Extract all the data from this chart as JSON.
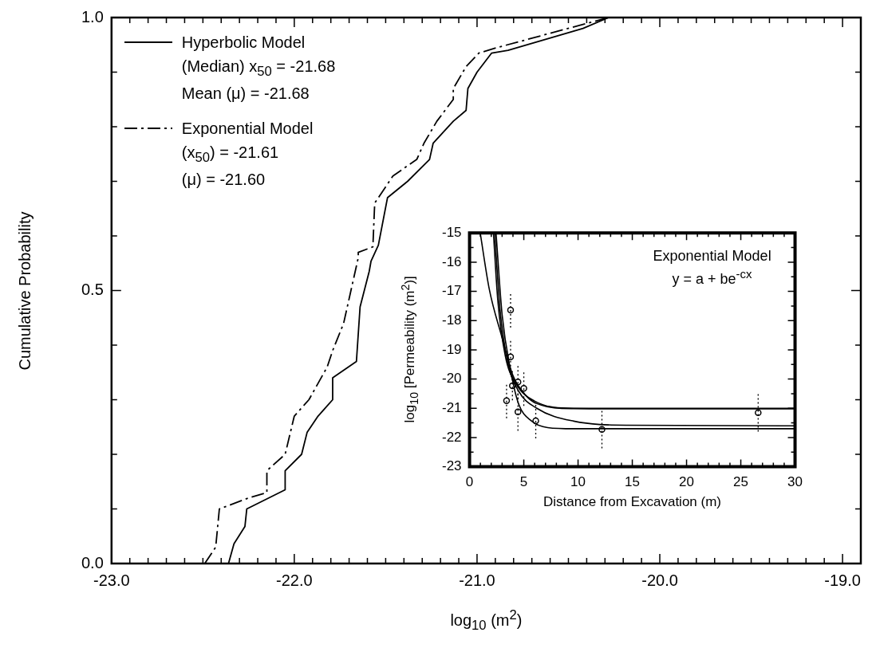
{
  "chart_data": [
    {
      "type": "line",
      "xlabel": "log$_{10}$ (m$^{2}$)",
      "ylabel": "Cumulative Probability",
      "legend": "top left",
      "annotations": [
        "(Median) x$_{50}$ = -21.68",
        "Mean (μ) = -21.68",
        "(x$_{50}$) = -21.61",
        "(μ) = -21.60"
      ],
      "xlim": [
        -23,
        -18.9
      ],
      "ylim": [
        0,
        1
      ],
      "xticks": [
        {
          "value": -23,
          "label": "-23.0"
        },
        {
          "value": -22.9,
          "label": null
        },
        {
          "value": -22.8,
          "label": null
        },
        {
          "value": -22.7,
          "label": null
        },
        {
          "value": -22.6,
          "label": null
        },
        {
          "value": -22.5,
          "label": null
        },
        {
          "value": -22.4,
          "label": null
        },
        {
          "value": -22.3,
          "label": null
        },
        {
          "value": -22.2,
          "label": null
        },
        {
          "value": -22.1,
          "label": null
        },
        {
          "value": -22,
          "label": "-22.0"
        },
        {
          "value": -21.9,
          "label": null
        },
        {
          "value": -21.8,
          "label": null
        },
        {
          "value": -21.7,
          "label": null
        },
        {
          "value": -21.6,
          "label": null
        },
        {
          "value": -21.5,
          "label": null
        },
        {
          "value": -21.4,
          "label": null
        },
        {
          "value": -21.3,
          "label": null
        },
        {
          "value": -21.2,
          "label": null
        },
        {
          "value": -21.1,
          "label": null
        },
        {
          "value": -21,
          "label": "-21.0"
        },
        {
          "value": -20.9,
          "label": null
        },
        {
          "value": -20.8,
          "label": null
        },
        {
          "value": -20.7,
          "label": null
        },
        {
          "value": -20.6,
          "label": null
        },
        {
          "value": -20.5,
          "label": null
        },
        {
          "value": -20.4,
          "label": null
        },
        {
          "value": -20.3,
          "label": null
        },
        {
          "value": -20.2,
          "label": null
        },
        {
          "value": -20.1,
          "label": null
        },
        {
          "value": -20,
          "label": "-20.0"
        },
        {
          "value": -19.9,
          "label": null
        },
        {
          "value": -19.8,
          "label": null
        },
        {
          "value": -19.7,
          "label": null
        },
        {
          "value": -19.6,
          "label": null
        },
        {
          "value": -19.5,
          "label": null
        },
        {
          "value": -19.4,
          "label": null
        },
        {
          "value": -19.3,
          "label": null
        },
        {
          "value": -19.2,
          "label": null
        },
        {
          "value": -19.1,
          "label": null
        },
        {
          "value": -19,
          "label": "-19.0"
        }
      ],
      "yticks": [
        {
          "value": 0,
          "label": "0.0"
        },
        {
          "value": 0.1,
          "label": null
        },
        {
          "value": 0.2,
          "label": null
        },
        {
          "value": 0.3,
          "label": null
        },
        {
          "value": 0.4,
          "label": null
        },
        {
          "value": 0.5,
          "label": "0.5"
        },
        {
          "value": 0.6,
          "label": null
        },
        {
          "value": 0.7,
          "label": null
        },
        {
          "value": 0.8,
          "label": null
        },
        {
          "value": 0.9,
          "label": null
        },
        {
          "value": 1,
          "label": "1.0"
        }
      ],
      "series": [
        {
          "name": "Hyperbolic Model",
          "color": "#000000",
          "line_style": "solid",
          "x": [
            -22.36,
            -22.33,
            -22.27,
            -22.26,
            -22.05,
            -22.05,
            -21.96,
            -21.93,
            -21.87,
            -21.79,
            -21.79,
            -21.66,
            -21.64,
            -21.59,
            -21.58,
            -21.54,
            -21.49,
            -21.38,
            -21.26,
            -21.24,
            -21.13,
            -21.06,
            -21.05,
            -21.0,
            -20.92,
            -20.83,
            -20.42,
            -20.28
          ],
          "values": [
            0,
            0.036,
            0.068,
            0.1,
            0.135,
            0.17,
            0.2,
            0.24,
            0.27,
            0.3,
            0.34,
            0.37,
            0.47,
            0.535,
            0.554,
            0.583,
            0.67,
            0.7,
            0.74,
            0.77,
            0.81,
            0.83,
            0.87,
            0.9,
            0.935,
            0.94,
            0.98,
            1
          ]
        },
        {
          "name": "Exponential Model",
          "color": "#000000",
          "line_style": "dashed",
          "x": [
            -22.49,
            -22.43,
            -22.41,
            -22.25,
            -22.15,
            -22.15,
            -22.05,
            -22.0,
            -21.92,
            -21.82,
            -21.79,
            -21.73,
            -21.65,
            -21.65,
            -21.57,
            -21.56,
            -21.46,
            -21.33,
            -21.29,
            -21.22,
            -21.13,
            -21.13,
            -21.06,
            -20.99,
            -20.89,
            -20.28
          ],
          "values": [
            0,
            0.03,
            0.1,
            0.12,
            0.13,
            0.17,
            0.2,
            0.27,
            0.3,
            0.36,
            0.39,
            0.44,
            0.56,
            0.57,
            0.58,
            0.66,
            0.71,
            0.74,
            0.77,
            0.81,
            0.85,
            0.87,
            0.91,
            0.935,
            0.945,
            1
          ]
        }
      ]
    },
    {
      "type": "line",
      "title": "Exponential Model",
      "subtitle": "y = a + be$^{-cx}$",
      "xlabel": "Distance from Excavation (m)",
      "ylabel": "log$_{10}$ [Permeability (m$^{2}$)]",
      "xlim": [
        0,
        30
      ],
      "ylim": [
        -23,
        -15
      ],
      "xticks": [
        0,
        {
          "value": 1,
          "label": null
        },
        {
          "value": 2,
          "label": null
        },
        {
          "value": 3,
          "label": null
        },
        {
          "value": 4,
          "label": null
        },
        5,
        {
          "value": 6,
          "label": null
        },
        {
          "value": 7,
          "label": null
        },
        {
          "value": 8,
          "label": null
        },
        {
          "value": 9,
          "label": null
        },
        10,
        {
          "value": 11,
          "label": null
        },
        {
          "value": 12,
          "label": null
        },
        {
          "value": 13,
          "label": null
        },
        {
          "value": 14,
          "label": null
        },
        15,
        {
          "value": 16,
          "label": null
        },
        {
          "value": 17,
          "label": null
        },
        {
          "value": 18,
          "label": null
        },
        {
          "value": 19,
          "label": null
        },
        20,
        {
          "value": 21,
          "label": null
        },
        {
          "value": 22,
          "label": null
        },
        {
          "value": 23,
          "label": null
        },
        {
          "value": 24,
          "label": null
        },
        25,
        {
          "value": 26,
          "label": null
        },
        {
          "value": 27,
          "label": null
        },
        {
          "value": 28,
          "label": null
        },
        {
          "value": 29,
          "label": null
        },
        30
      ],
      "yticks": [
        -23,
        {
          "value": -22.5,
          "label": null
        },
        -22,
        {
          "value": -21.5,
          "label": null
        },
        -21,
        {
          "value": -20.5,
          "label": null
        },
        -20,
        {
          "value": -19.5,
          "label": null
        },
        -19,
        {
          "value": -18.5,
          "label": null
        },
        -18,
        {
          "value": -17.5,
          "label": null
        },
        -17,
        {
          "value": -16.5,
          "label": null
        },
        -16,
        {
          "value": -15.5,
          "label": null
        },
        -15
      ],
      "series": [
        {
          "color": "#000000",
          "line_style": "solid",
          "marker": "none",
          "x": [
            0.98,
            1.83,
            2.93,
            4.02,
            5.24,
            6.2,
            9.6,
            15,
            30
          ],
          "values": [
            -15,
            -16.95,
            -18.5,
            -19.9,
            -20.58,
            -20.84,
            -21.01,
            -21.02,
            -21.02
          ]
        },
        {
          "color": "#000000",
          "line_style": "solid",
          "marker": "none",
          "x": [
            2.2,
            2.6,
            3.29,
            4.27,
            5.98,
            9.6,
            30
          ],
          "values": [
            -15,
            -17.3,
            -19.2,
            -20.15,
            -20.75,
            -21.0,
            -21.0
          ]
        },
        {
          "color": "#000000",
          "line_style": "solid",
          "marker": "none",
          "x": [
            2.32,
            2.8,
            3.54,
            4.5,
            6.2,
            9.6,
            14.5,
            30
          ],
          "values": [
            -15,
            -17.6,
            -19.46,
            -20.4,
            -21.0,
            -21.44,
            -21.58,
            -21.6
          ]
        },
        {
          "color": "#000000",
          "line_style": "solid",
          "marker": "none",
          "x": [
            2.44,
            3.0,
            3.78,
            4.51,
            5.73,
            7.2,
            9.6,
            30
          ],
          "values": [
            -15,
            -17.8,
            -19.7,
            -20.84,
            -21.44,
            -21.66,
            -21.7,
            -21.7
          ]
        },
        {
          "type": "scatter",
          "color": "#000000",
          "marker": "circle",
          "x": [
            3.41,
            3.78,
            3.78,
            3.95,
            4.46,
            4.46,
            5.0,
            6.1,
            12.2,
            26.6
          ],
          "values": [
            -20.74,
            -17.64,
            -19.24,
            -20.23,
            -21.12,
            -20.1,
            -20.32,
            -21.43,
            -21.72,
            -21.15
          ],
          "errors": [
            0.6,
            0.6,
            0.6,
            0.5,
            0.65,
            0.6,
            0.6,
            0.6,
            0.65,
            0.65
          ]
        }
      ]
    }
  ]
}
